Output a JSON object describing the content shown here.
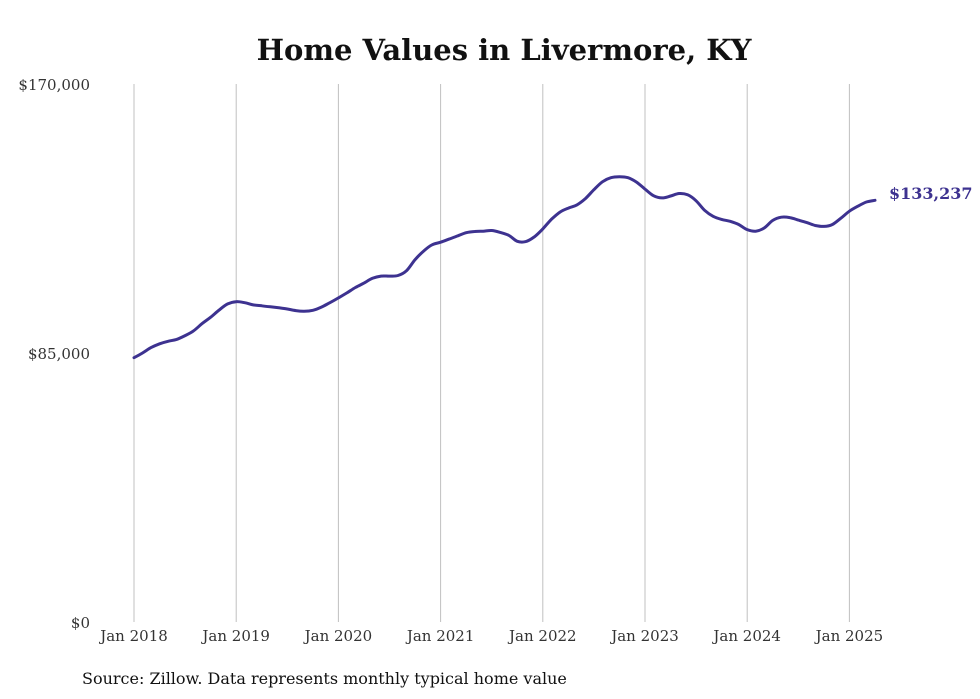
{
  "chart_data": {
    "type": "line",
    "title": "Home Values in Livermore, KY",
    "source": "Source: Zillow. Data represents monthly typical home value",
    "end_label": "$133,237",
    "ylim": [
      0,
      170000
    ],
    "y_ticks": [
      {
        "value": 0,
        "label": "$0"
      },
      {
        "value": 85000,
        "label": "$85,000"
      },
      {
        "value": 170000,
        "label": "$170,000"
      }
    ],
    "x_ticks": [
      {
        "value": 2018,
        "label": "Jan 2018"
      },
      {
        "value": 2019,
        "label": "Jan 2019"
      },
      {
        "value": 2020,
        "label": "Jan 2020"
      },
      {
        "value": 2021,
        "label": "Jan 2021"
      },
      {
        "value": 2022,
        "label": "Jan 2022"
      },
      {
        "value": 2023,
        "label": "Jan 2023"
      },
      {
        "value": 2024,
        "label": "Jan 2024"
      },
      {
        "value": 2025,
        "label": "Jan 2025"
      }
    ],
    "xlim": [
      2018,
      2025.25
    ],
    "grid": "vertical",
    "line_color": "#3d3290",
    "series": [
      {
        "x": [
          "2018-01",
          "2018-02",
          "2018-03",
          "2018-04",
          "2018-05",
          "2018-06",
          "2018-07",
          "2018-08",
          "2018-09",
          "2018-10",
          "2018-11",
          "2018-12",
          "2019-01",
          "2019-02",
          "2019-03",
          "2019-04",
          "2019-05",
          "2019-06",
          "2019-07",
          "2019-08",
          "2019-09",
          "2019-10",
          "2019-11",
          "2019-12",
          "2020-01",
          "2020-02",
          "2020-03",
          "2020-04",
          "2020-05",
          "2020-06",
          "2020-07",
          "2020-08",
          "2020-09",
          "2020-10",
          "2020-11",
          "2020-12",
          "2021-01",
          "2021-02",
          "2021-03",
          "2021-04",
          "2021-05",
          "2021-06",
          "2021-07",
          "2021-08",
          "2021-09",
          "2021-10",
          "2021-11",
          "2021-12",
          "2022-01",
          "2022-02",
          "2022-03",
          "2022-04",
          "2022-05",
          "2022-06",
          "2022-07",
          "2022-08",
          "2022-09",
          "2022-10",
          "2022-11",
          "2022-12",
          "2023-01",
          "2023-02",
          "2023-03",
          "2023-04",
          "2023-05",
          "2023-06",
          "2023-07",
          "2023-08",
          "2023-09",
          "2023-10",
          "2023-11",
          "2023-12",
          "2024-01",
          "2024-02",
          "2024-03",
          "2024-04",
          "2024-05",
          "2024-06",
          "2024-07",
          "2024-08",
          "2024-09",
          "2024-10",
          "2024-11",
          "2024-12",
          "2025-01",
          "2025-02",
          "2025-03",
          "2025-04"
        ],
        "values": [
          83500,
          85000,
          86700,
          87900,
          88700,
          89300,
          90500,
          92000,
          94300,
          96300,
          98600,
          100500,
          101200,
          100900,
          100200,
          99900,
          99600,
          99300,
          98900,
          98400,
          98200,
          98500,
          99500,
          100900,
          102400,
          104000,
          105700,
          107100,
          108600,
          109300,
          109300,
          109500,
          111000,
          114500,
          117200,
          119200,
          120000,
          121000,
          122000,
          123000,
          123400,
          123500,
          123700,
          123100,
          122200,
          120300,
          120200,
          121700,
          124200,
          127200,
          129500,
          130800,
          131800,
          133800,
          136600,
          139100,
          140400,
          140700,
          140400,
          139000,
          136800,
          134700,
          134000,
          134600,
          135400,
          135000,
          133100,
          130100,
          128200,
          127200,
          126600,
          125600,
          124000,
          123500,
          124500,
          126900,
          127900,
          127800,
          127000,
          126200,
          125300,
          125000,
          125600,
          127600,
          129800,
          131400,
          132700,
          133237
        ]
      }
    ]
  }
}
